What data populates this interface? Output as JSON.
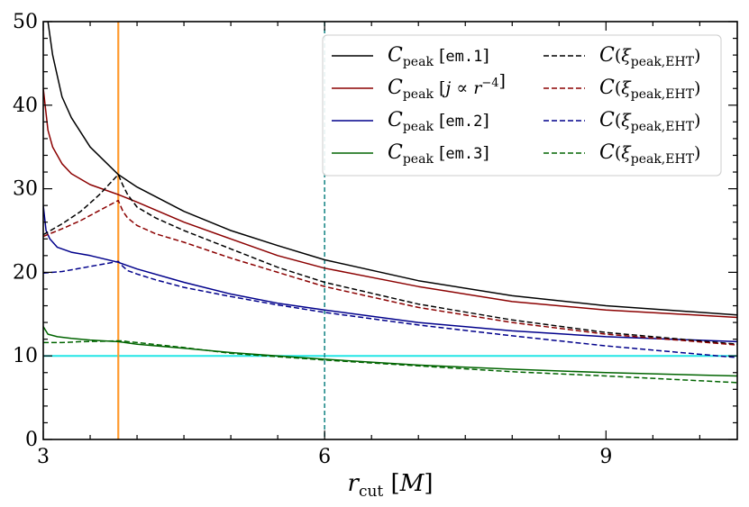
{
  "chart_data": {
    "type": "line",
    "xlabel": "r_cut [M]",
    "xlim": [
      3,
      10.4
    ],
    "ylim": [
      0,
      50
    ],
    "xticks": [
      3,
      6,
      9
    ],
    "yticks": [
      0,
      10,
      20,
      30,
      40,
      50
    ],
    "grid": false,
    "legend_position": "top-right",
    "vlines": [
      {
        "x": 3.8,
        "color": "#ff9a2e",
        "style": "solid"
      },
      {
        "x": 6.0,
        "color": "#1f8a8a",
        "style": "dashed"
      }
    ],
    "hlines": [
      {
        "y": 10,
        "color": "#22e6e6",
        "style": "solid"
      }
    ],
    "series": [
      {
        "name": "C_peak [em.1]",
        "color": "#000000",
        "style": "solid",
        "x": [
          3.05,
          3.1,
          3.2,
          3.3,
          3.5,
          3.8,
          4.0,
          4.5,
          5.0,
          5.5,
          6.0,
          7.0,
          8.0,
          9.0,
          10.4
        ],
        "y": [
          50,
          46,
          41,
          38.5,
          35,
          31.7,
          30.2,
          27.3,
          25.0,
          23.2,
          21.5,
          19.0,
          17.2,
          16.0,
          14.9
        ]
      },
      {
        "name": "C_peak [j ∝ r^-4]",
        "color": "#8b0000",
        "style": "solid",
        "x": [
          3.0,
          3.05,
          3.1,
          3.2,
          3.3,
          3.5,
          3.8,
          4.0,
          4.5,
          5.0,
          5.5,
          6.0,
          7.0,
          8.0,
          9.0,
          10.4
        ],
        "y": [
          42,
          37,
          35,
          33,
          31.8,
          30.5,
          29.3,
          28.4,
          26.0,
          24.0,
          22.0,
          20.5,
          18.3,
          16.5,
          15.5,
          14.6
        ]
      },
      {
        "name": "C_peak [em.2]",
        "color": "#00008b",
        "style": "solid",
        "x": [
          3.0,
          3.03,
          3.07,
          3.15,
          3.3,
          3.5,
          3.8,
          4.0,
          4.5,
          5.0,
          5.5,
          6.0,
          7.0,
          8.0,
          9.0,
          10.4
        ],
        "y": [
          28,
          25,
          24,
          23,
          22.4,
          22.0,
          21.2,
          20.4,
          18.8,
          17.4,
          16.3,
          15.5,
          14.0,
          13.0,
          12.3,
          11.7
        ]
      },
      {
        "name": "C_peak [em.3]",
        "color": "#006400",
        "style": "solid",
        "x": [
          3.0,
          3.05,
          3.15,
          3.3,
          3.5,
          3.8,
          4.0,
          4.5,
          5.0,
          5.5,
          6.0,
          7.0,
          8.0,
          9.0,
          10.4
        ],
        "y": [
          13.5,
          12.6,
          12.3,
          12.1,
          11.9,
          11.7,
          11.4,
          10.9,
          10.4,
          10.0,
          9.6,
          8.9,
          8.4,
          8.0,
          7.6
        ]
      },
      {
        "name": "C(ξ_peak,EHT)",
        "color": "#000000",
        "style": "dashed",
        "x": [
          3.0,
          3.2,
          3.4,
          3.6,
          3.8,
          3.85,
          3.9,
          4.0,
          4.2,
          4.5,
          5.0,
          5.5,
          6.0,
          7.0,
          8.0,
          9.0,
          10.4
        ],
        "y": [
          24.5,
          25.8,
          27.3,
          29.3,
          31.7,
          30.4,
          29.3,
          27.8,
          26.5,
          25.0,
          22.8,
          20.6,
          18.8,
          16.2,
          14.3,
          12.8,
          11.4
        ]
      },
      {
        "name": "C(ξ_peak,EHT)",
        "color": "#8b0000",
        "style": "dashed",
        "x": [
          3.0,
          3.2,
          3.4,
          3.6,
          3.8,
          3.85,
          3.9,
          4.0,
          4.2,
          4.5,
          5.0,
          5.5,
          6.0,
          7.0,
          8.0,
          9.0,
          10.4
        ],
        "y": [
          24.3,
          25.2,
          26.2,
          27.4,
          28.6,
          27.3,
          26.5,
          25.6,
          24.6,
          23.6,
          21.7,
          20.0,
          18.3,
          15.8,
          14.0,
          12.6,
          11.3
        ]
      },
      {
        "name": "C(ξ_peak,EHT)",
        "color": "#00008b",
        "style": "dashed",
        "x": [
          3.0,
          3.2,
          3.4,
          3.6,
          3.8,
          3.85,
          3.9,
          4.0,
          4.2,
          4.5,
          5.0,
          5.5,
          6.0,
          7.0,
          8.0,
          9.0,
          10.4
        ],
        "y": [
          19.9,
          20.1,
          20.5,
          20.9,
          21.3,
          20.7,
          20.2,
          19.8,
          19.1,
          18.2,
          17.1,
          16.1,
          15.2,
          13.7,
          12.4,
          11.2,
          9.8
        ]
      },
      {
        "name": "C(ξ_peak,EHT)",
        "color": "#006400",
        "style": "dashed",
        "x": [
          3.0,
          3.2,
          3.4,
          3.6,
          3.8,
          3.85,
          3.9,
          4.0,
          4.5,
          5.0,
          5.5,
          6.0,
          7.0,
          8.0,
          9.0,
          10.4
        ],
        "y": [
          11.6,
          11.6,
          11.7,
          11.75,
          11.8,
          11.8,
          11.7,
          11.6,
          11.0,
          10.3,
          9.9,
          9.5,
          8.8,
          8.1,
          7.6,
          6.8
        ]
      }
    ]
  }
}
